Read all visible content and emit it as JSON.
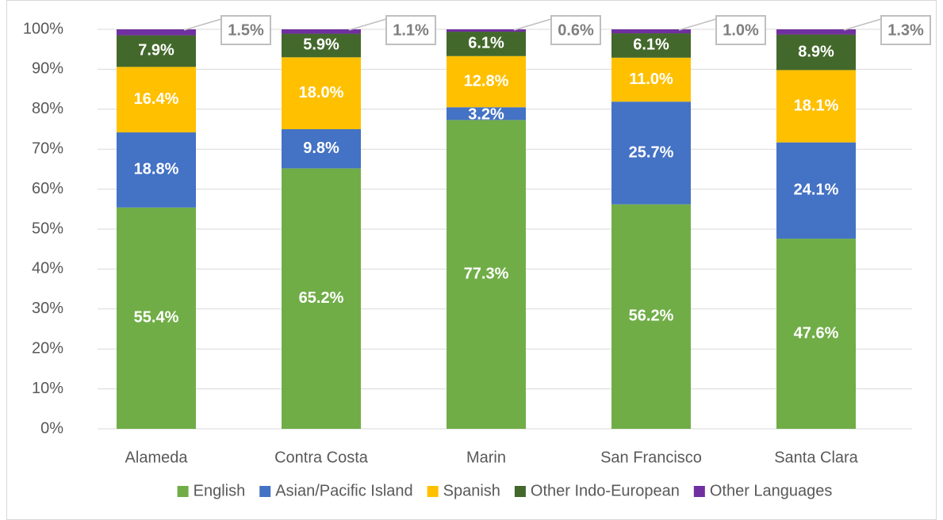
{
  "chart_data": {
    "type": "stacked_bar",
    "categories": [
      "Alameda",
      "Contra Costa",
      "Marin",
      "San Francisco",
      "Santa Clara"
    ],
    "series": [
      {
        "name": "English",
        "color": "#70ad47",
        "values": [
          55.4,
          65.2,
          77.3,
          56.2,
          47.6
        ],
        "value_labels": [
          "55.4%",
          "65.2%",
          "77.3%",
          "56.2%",
          "47.6%"
        ]
      },
      {
        "name": "Asian/Pacific Island",
        "color": "#4472c4",
        "values": [
          18.8,
          9.8,
          3.2,
          25.7,
          24.1
        ],
        "value_labels": [
          "18.8%",
          "9.8%",
          "3.2%",
          "25.7%",
          "24.1%"
        ]
      },
      {
        "name": "Spanish",
        "color": "#ffc000",
        "values": [
          16.4,
          18.0,
          12.8,
          11.0,
          18.1
        ],
        "value_labels": [
          "16.4%",
          "18.0%",
          "12.8%",
          "11.0%",
          "18.1%"
        ]
      },
      {
        "name": "Other Indo-European",
        "color": "#43682b",
        "values": [
          7.9,
          5.9,
          6.1,
          6.1,
          8.9
        ],
        "value_labels": [
          "7.9%",
          "5.9%",
          "6.1%",
          "6.1%",
          "8.9%"
        ]
      },
      {
        "name": "Other Languages",
        "color": "#7030a0",
        "values": [
          1.5,
          1.1,
          0.6,
          1.0,
          1.3
        ],
        "value_labels": [
          "1.5%",
          "1.1%",
          "0.6%",
          "1.0%",
          "1.3%"
        ],
        "callout": true
      }
    ],
    "ylim": [
      0,
      100
    ],
    "yticks": [
      {
        "value": 0,
        "label": "0%"
      },
      {
        "value": 10,
        "label": "10%"
      },
      {
        "value": 20,
        "label": "20%"
      },
      {
        "value": 30,
        "label": "30%"
      },
      {
        "value": 40,
        "label": "40%"
      },
      {
        "value": 50,
        "label": "50%"
      },
      {
        "value": 60,
        "label": "60%"
      },
      {
        "value": 70,
        "label": "70%"
      },
      {
        "value": 80,
        "label": "80%"
      },
      {
        "value": 90,
        "label": "90%"
      },
      {
        "value": 100,
        "label": "100%"
      }
    ],
    "grid": true,
    "legend": "bottom"
  }
}
